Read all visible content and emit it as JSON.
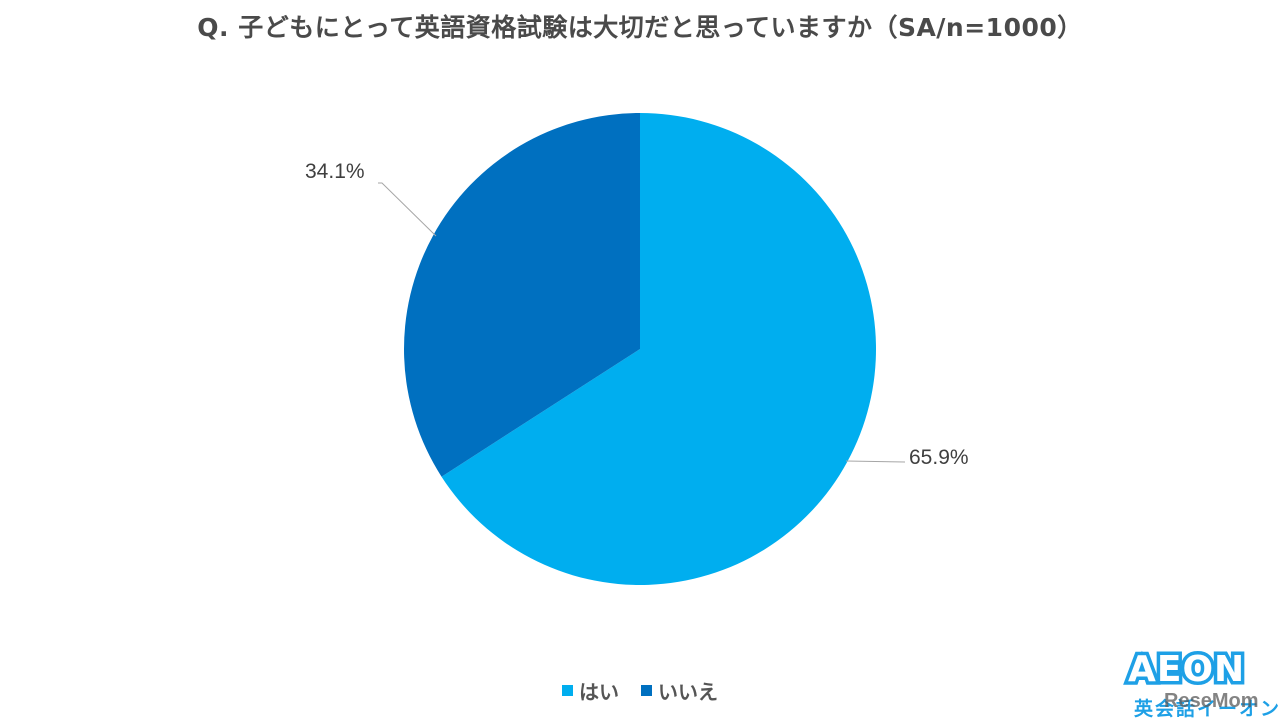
{
  "title": "Q. 子どもにとって英語資格試験は大切だと思っていますか（SA/n=1000）",
  "chart_data": {
    "type": "pie",
    "title": "Q. 子どもにとって英語資格試験は大切だと思っていますか（SA/n=1000）",
    "categories": [
      "はい",
      "いいえ"
    ],
    "values": [
      65.9,
      34.1
    ],
    "unit": "%",
    "n": 1000,
    "colors": [
      "#00AEEF",
      "#0070C0"
    ],
    "data_labels": [
      "65.9%",
      "34.1%"
    ],
    "start_angle": "12 o'clock",
    "direction": "clockwise",
    "legend_position": "bottom"
  },
  "legend": {
    "items": [
      {
        "label": "はい",
        "color": "#00AEEF"
      },
      {
        "label": "いいえ",
        "color": "#0070C0"
      }
    ]
  },
  "labels": {
    "yes_pct": "65.9%",
    "no_pct": "34.1%"
  },
  "logo": {
    "main": "AEON",
    "sub": "英会話イーオン",
    "color": "#1EA0E6"
  },
  "watermark": "ReseMom"
}
